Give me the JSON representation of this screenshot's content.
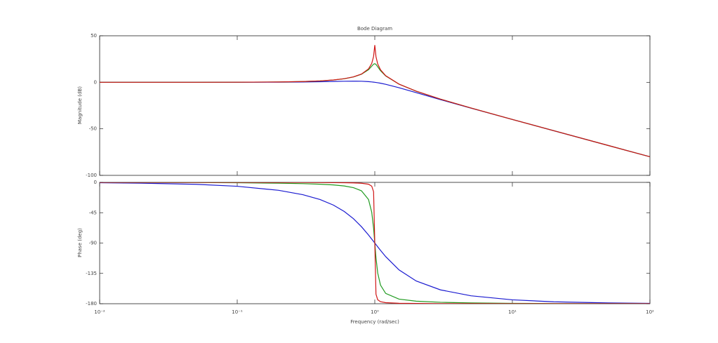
{
  "chart_data": [
    {
      "type": "line",
      "title": "Bode Diagram",
      "ylabel": "Magnitude (dB)",
      "xscale": "log",
      "xlim": [
        0.01,
        100
      ],
      "ylim": [
        -100,
        50
      ],
      "yticks": [
        -100,
        -50,
        0,
        50
      ],
      "grid": false,
      "x": [
        0.01,
        0.02,
        0.05,
        0.1,
        0.2,
        0.3,
        0.4,
        0.5,
        0.6,
        0.7,
        0.8,
        0.9,
        0.95,
        0.98,
        1,
        1.02,
        1.05,
        1.1,
        1.2,
        1.5,
        2,
        3,
        5,
        10,
        20,
        50,
        100
      ],
      "series": [
        {
          "color": "#1a1ad0",
          "values": [
            0,
            0,
            0.01,
            0.04,
            0.17,
            0.37,
            0.63,
            0.9,
            1.14,
            1.25,
            1.14,
            0.73,
            0.4,
            0.17,
            0,
            -0.18,
            -0.47,
            -0.98,
            -2.13,
            -5.81,
            -11.14,
            -18.63,
            -27.79,
            -39.96,
            -52.03,
            -67.96,
            -80
          ]
        },
        {
          "color": "#1f9a1f",
          "values": [
            0,
            0,
            0.02,
            0.09,
            0.35,
            0.81,
            1.5,
            2.48,
            3.84,
            5.77,
            8.66,
            13.55,
            17.32,
            19.51,
            20,
            19.21,
            16.68,
            12.5,
            6.82,
            -2,
            -9.56,
            -18.07,
            -27.61,
            -39.91,
            -52.02,
            -67.96,
            -80
          ]
        },
        {
          "color": "#d01515",
          "values": [
            0,
            0,
            0.02,
            0.09,
            0.35,
            0.82,
            1.51,
            2.5,
            3.88,
            5.85,
            8.87,
            14.42,
            20.18,
            27.79,
            40,
            27.6,
            19.74,
            13.54,
            7.13,
            -1.94,
            -9.54,
            -18.06,
            -27.61,
            -39.91,
            -52.02,
            -67.96,
            -80
          ]
        }
      ]
    },
    {
      "type": "line",
      "ylabel": "Phase (deg)",
      "xlabel": "Frequency  (rad/sec)",
      "xscale": "log",
      "xlim": [
        0.01,
        100
      ],
      "ylim": [
        -180,
        0
      ],
      "yticks": [
        -180,
        -135,
        -90,
        -45,
        0
      ],
      "grid": false,
      "xticks": [
        {
          "value": 0.01,
          "label": "10⁻²"
        },
        {
          "value": 0.1,
          "label": "10⁻¹"
        },
        {
          "value": 1,
          "label": "10⁰"
        },
        {
          "value": 10,
          "label": "10¹"
        },
        {
          "value": 100,
          "label": "10²"
        }
      ],
      "x": [
        0.01,
        0.02,
        0.05,
        0.1,
        0.2,
        0.3,
        0.4,
        0.5,
        0.6,
        0.7,
        0.8,
        0.9,
        0.95,
        0.98,
        1,
        1.02,
        1.05,
        1.1,
        1.2,
        1.5,
        2,
        3,
        5,
        10,
        20,
        50,
        100
      ],
      "series": [
        {
          "color": "#1a1ad0",
          "values": [
            -0.57,
            -1.15,
            -2.87,
            -5.77,
            -11.77,
            -18.25,
            -25.46,
            -33.69,
            -43.15,
            -53.93,
            -65.77,
            -78.08,
            -84.14,
            -87.69,
            -90,
            -92.27,
            -95.58,
            -100.81,
            -110.14,
            -129.81,
            -146.31,
            -159.44,
            -168.23,
            -174.23,
            -177.13,
            -178.85,
            -179.43
          ]
        },
        {
          "color": "#1f9a1f",
          "values": [
            -0.06,
            -0.11,
            -0.29,
            -0.58,
            -1.19,
            -1.89,
            -2.73,
            -3.81,
            -5.36,
            -7.82,
            -12.53,
            -25.35,
            -44.26,
            -68,
            -90,
            -111.61,
            -134.31,
            -152.35,
            -164.74,
            -173.16,
            -176.19,
            -177.85,
            -178.81,
            -179.42,
            -179.71,
            -179.89,
            -179.94
          ]
        },
        {
          "color": "#d01515",
          "values": [
            -0.01,
            -0.01,
            -0.03,
            -0.06,
            -0.12,
            -0.19,
            -0.27,
            -0.38,
            -0.54,
            -0.79,
            -1.27,
            -2.71,
            -5.57,
            -13.9,
            -90,
            -165.83,
            -174.15,
            -177,
            -178.44,
            -179.31,
            -179.62,
            -179.79,
            -179.88,
            -179.94,
            -179.97,
            -179.99,
            -179.99
          ]
        }
      ]
    }
  ]
}
